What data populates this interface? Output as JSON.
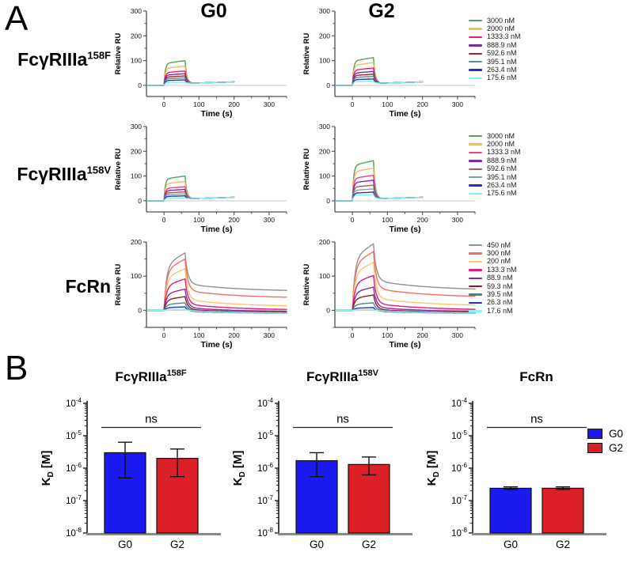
{
  "figure": {
    "panelA": {
      "label": "A",
      "col_headers": [
        "G0",
        "G2"
      ]
    },
    "panelB": {
      "label": "B"
    }
  },
  "chart_data": [
    {
      "type": "line",
      "subtype": "spr-sensorgram-grid",
      "columns": [
        "G0",
        "G2"
      ],
      "xlabel": "Time (s)",
      "ylabel": "Relative RU",
      "rows": [
        {
          "name_base": "FcγRIIIa",
          "name_sup": "158F",
          "xlim": [
            -50,
            350
          ],
          "xticks": [
            0,
            100,
            200,
            300
          ],
          "ylim": [
            -45,
            300
          ],
          "yticks": [
            0,
            100,
            200,
            300
          ],
          "inject_end": 60,
          "trace_end": 200,
          "rise": {
            "tau": 3.5,
            "lin": 0.12
          },
          "decay": {
            "mode": "converge",
            "shoulder": 8,
            "end": 14,
            "fall_tau": 5
          },
          "legend": [
            "3000 nM",
            "2000 nM",
            "1333.3 nM",
            "888.9 nM",
            "592.6 nM",
            "395.1 nM",
            "263.4 nM",
            "175.6 nM"
          ],
          "colors": [
            "#55a05a",
            "#f2be58",
            "#e9197a",
            "#7f28a5",
            "#9e2723",
            "#56908f",
            "#2b32ad",
            "#7ff0ee"
          ],
          "peaks": {
            "G0": [
              100,
              78,
              58,
              47,
              38,
              30,
              22,
              13
            ],
            "G2": [
              112,
              92,
              70,
              56,
              45,
              36,
              26,
              17
            ]
          }
        },
        {
          "name_base": "FcγRIIIa",
          "name_sup": "158V",
          "xlim": [
            -50,
            350
          ],
          "xticks": [
            0,
            100,
            200,
            300
          ],
          "ylim": [
            -45,
            300
          ],
          "yticks": [
            0,
            100,
            200,
            300
          ],
          "inject_end": 60,
          "trace_end": 200,
          "rise": {
            "tau": 3.5,
            "lin": 0.12
          },
          "decay": {
            "mode": "converge",
            "shoulder": 8,
            "end": 14,
            "fall_tau": 5
          },
          "legend": [
            "3000 nM",
            "2000 nM",
            "1333.3 nM",
            "888.9 nM",
            "592.6 nM",
            "395.1 nM",
            "263.4 nM",
            "175.6 nM"
          ],
          "colors": [
            "#55a05a",
            "#f2be58",
            "#ef3d8d",
            "#7f28a5",
            "#b05a55",
            "#7ba2a0",
            "#2b32ad",
            "#7ff0ee"
          ],
          "peaks": {
            "G0": [
              100,
              78,
              57,
              46,
              36,
              28,
              20,
              12
            ],
            "G2": [
              162,
              132,
              103,
              83,
              63,
              48,
              35,
              25
            ]
          }
        },
        {
          "name_base": "FcRn",
          "name_sup": "",
          "xlim": [
            -50,
            350
          ],
          "xticks": [
            0,
            100,
            200,
            300
          ],
          "ylim": [
            -50,
            200
          ],
          "yticks": [
            0,
            100,
            200
          ],
          "inject_end": 60,
          "trace_end": 350,
          "rise": {
            "tau": 7,
            "lin": 0.22
          },
          "decay": {
            "mode": "biexp",
            "fall_tau": 8,
            "tail_tau": 150,
            "shoulders": {
              "G0": [
                78,
                58,
                32,
                18,
                8,
                3,
                0,
                -2,
                0
              ],
              "G2": [
                88,
                65,
                36,
                20,
                9,
                3,
                0,
                -2,
                0
              ]
            },
            "ends": {
              "G0": [
                55,
                35,
                10,
                0,
                -5,
                -8,
                -9,
                -10,
                -10
              ],
              "G2": [
                58,
                37,
                12,
                0,
                -5,
                -8,
                -9,
                -10,
                -10
              ]
            }
          },
          "legend": [
            "450 nM",
            "300 nM",
            "200 nM",
            "133.3 nM",
            "88.9 nM",
            "59.3 nM",
            "39.5 nM",
            "26.3 nM",
            "17.6 nM"
          ],
          "colors": [
            "#909090",
            "#f0705f",
            "#f6c86a",
            "#e8197d",
            "#8a2ba0",
            "#8f1a1f",
            "#3f8a8c",
            "#2633b8",
            "#8ef6f2"
          ],
          "peaks": {
            "G0": [
              168,
              150,
              122,
              92,
              62,
              40,
              22,
              10,
              3
            ],
            "G2": [
              195,
              172,
              140,
              102,
              68,
              45,
              22,
              8,
              2
            ]
          }
        }
      ]
    },
    {
      "type": "bar",
      "scale": "log",
      "ylabel_main": "K",
      "ylabel_sub": "D",
      "ylabel_rest": " [M]",
      "ylim_exp": [
        -8,
        -4
      ],
      "categories": [
        "G0",
        "G2"
      ],
      "bar_colors": [
        "#1d1af0",
        "#dd2027"
      ],
      "sig_label": "ns",
      "sig_y": 1.8e-05,
      "charts": [
        {
          "title_base": "FcγRIIIa",
          "title_sup": "158F",
          "values": [
            3e-06,
            2e-06
          ],
          "err_lo": [
            5e-07,
            5.5e-07
          ],
          "err_hi": [
            6.3e-06,
            3.9e-06
          ]
        },
        {
          "title_base": "FcγRIIIa",
          "title_sup": "158V",
          "values": [
            1.7e-06,
            1.3e-06
          ],
          "err_lo": [
            5.5e-07,
            6.2e-07
          ],
          "err_hi": [
            3e-06,
            2.2e-06
          ]
        },
        {
          "title_base": "FcRn",
          "title_sup": "",
          "values": [
            2.4e-07,
            2.4e-07
          ],
          "err_lo": [
            2.2e-07,
            2.2e-07
          ],
          "err_hi": [
            2.65e-07,
            2.65e-07
          ]
        }
      ],
      "legend": [
        {
          "label": "G0",
          "color": "#1d1af0"
        },
        {
          "label": "G2",
          "color": "#dd2027"
        }
      ]
    }
  ]
}
